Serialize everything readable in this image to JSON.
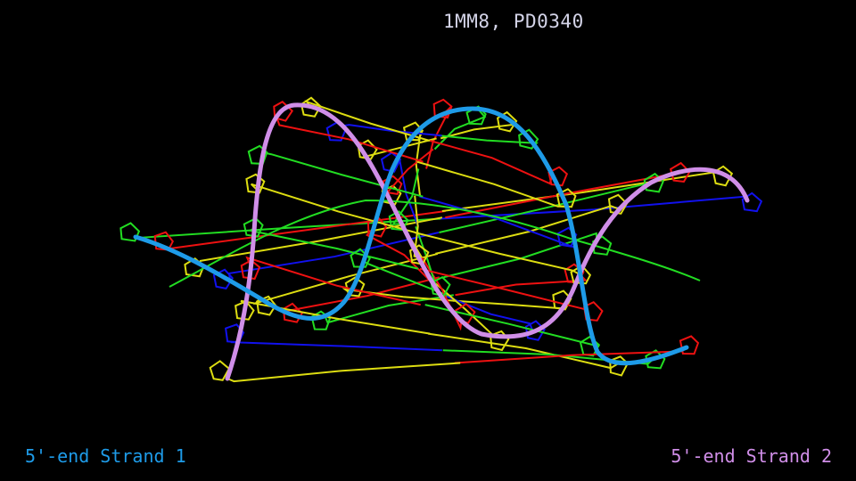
{
  "title": "1MM8, PD0340",
  "labels": {
    "strand1": "5'-end Strand 1",
    "strand2": "5'-end Strand 2"
  },
  "colors": {
    "background": "#000000",
    "strand1": "#1e9be8",
    "strand2": "#d08ee8",
    "base_green": "#22dd22",
    "base_red": "#ee1111",
    "base_yellow": "#dddd11",
    "base_blue": "#1111ee"
  }
}
